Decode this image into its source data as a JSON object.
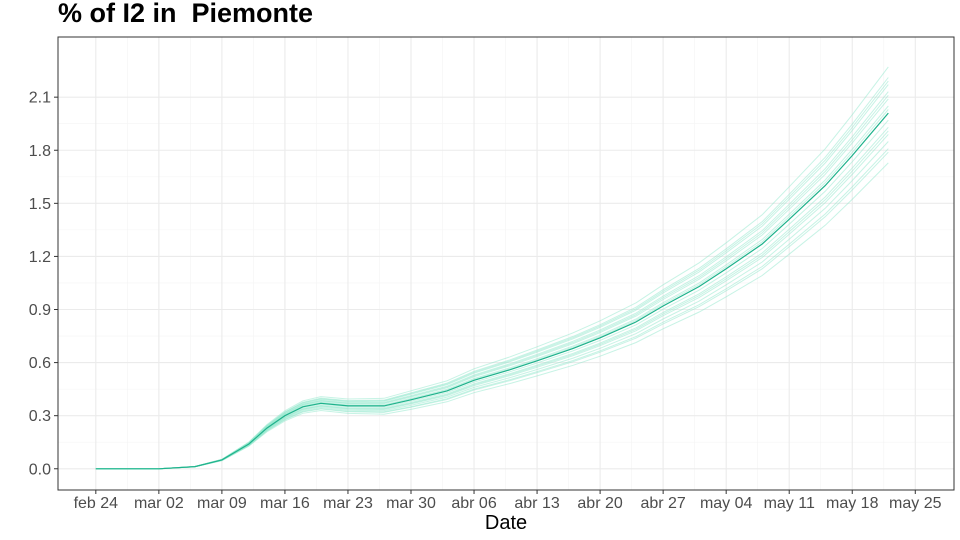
{
  "chart_data": {
    "type": "line",
    "title": "% of I2 in  Piemonte",
    "xlabel": "Date",
    "ylabel": "",
    "x_tick_labels": [
      "feb 24",
      "mar 02",
      "mar 09",
      "mar 16",
      "mar 23",
      "mar 30",
      "abr 06",
      "abr 13",
      "abr 20",
      "abr 27",
      "may 04",
      "may 11",
      "may 18",
      "may 25"
    ],
    "y_ticks": [
      0.0,
      0.3,
      0.6,
      0.9,
      1.2,
      1.5,
      1.8,
      2.1
    ],
    "y_tick_labels": [
      "0.0",
      "0.3",
      "0.6",
      "0.9",
      "1.2",
      "1.5",
      "1.8",
      "2.1"
    ],
    "xlim_days_from_first_tick": [
      -4.2,
      95.3
    ],
    "ylim": [
      -0.12,
      2.44
    ],
    "grid": true,
    "main_color": "#1fb28c",
    "band_color": "#8fe8cc",
    "x": [
      "feb 24",
      "mar 02",
      "mar 06",
      "mar 09",
      "mar 12",
      "mar 14",
      "mar 16",
      "mar 18",
      "mar 20",
      "mar 23",
      "mar 27",
      "mar 30",
      "abr 03",
      "abr 06",
      "abr 10",
      "abr 13",
      "abr 17",
      "abr 20",
      "abr 24",
      "abr 27",
      "may 01",
      "may 04",
      "may 08",
      "may 11",
      "may 15",
      "may 18",
      "may 22"
    ],
    "series": [
      {
        "values": [
          0.0,
          0.0,
          0.012,
          0.05,
          0.14,
          0.23,
          0.3,
          0.35,
          0.37,
          0.355,
          0.355,
          0.39,
          0.44,
          0.5,
          0.56,
          0.61,
          0.68,
          0.74,
          0.83,
          0.92,
          1.03,
          1.13,
          1.27,
          1.41,
          1.6,
          1.77,
          2.01
        ]
      }
    ],
    "band_scales": [
      0.86,
      0.89,
      0.92,
      0.94,
      0.96,
      0.98,
      1.0,
      1.02,
      1.04,
      1.06,
      1.08,
      1.1,
      1.13,
      0.9,
      0.95,
      1.01,
      1.05,
      1.09
    ]
  }
}
